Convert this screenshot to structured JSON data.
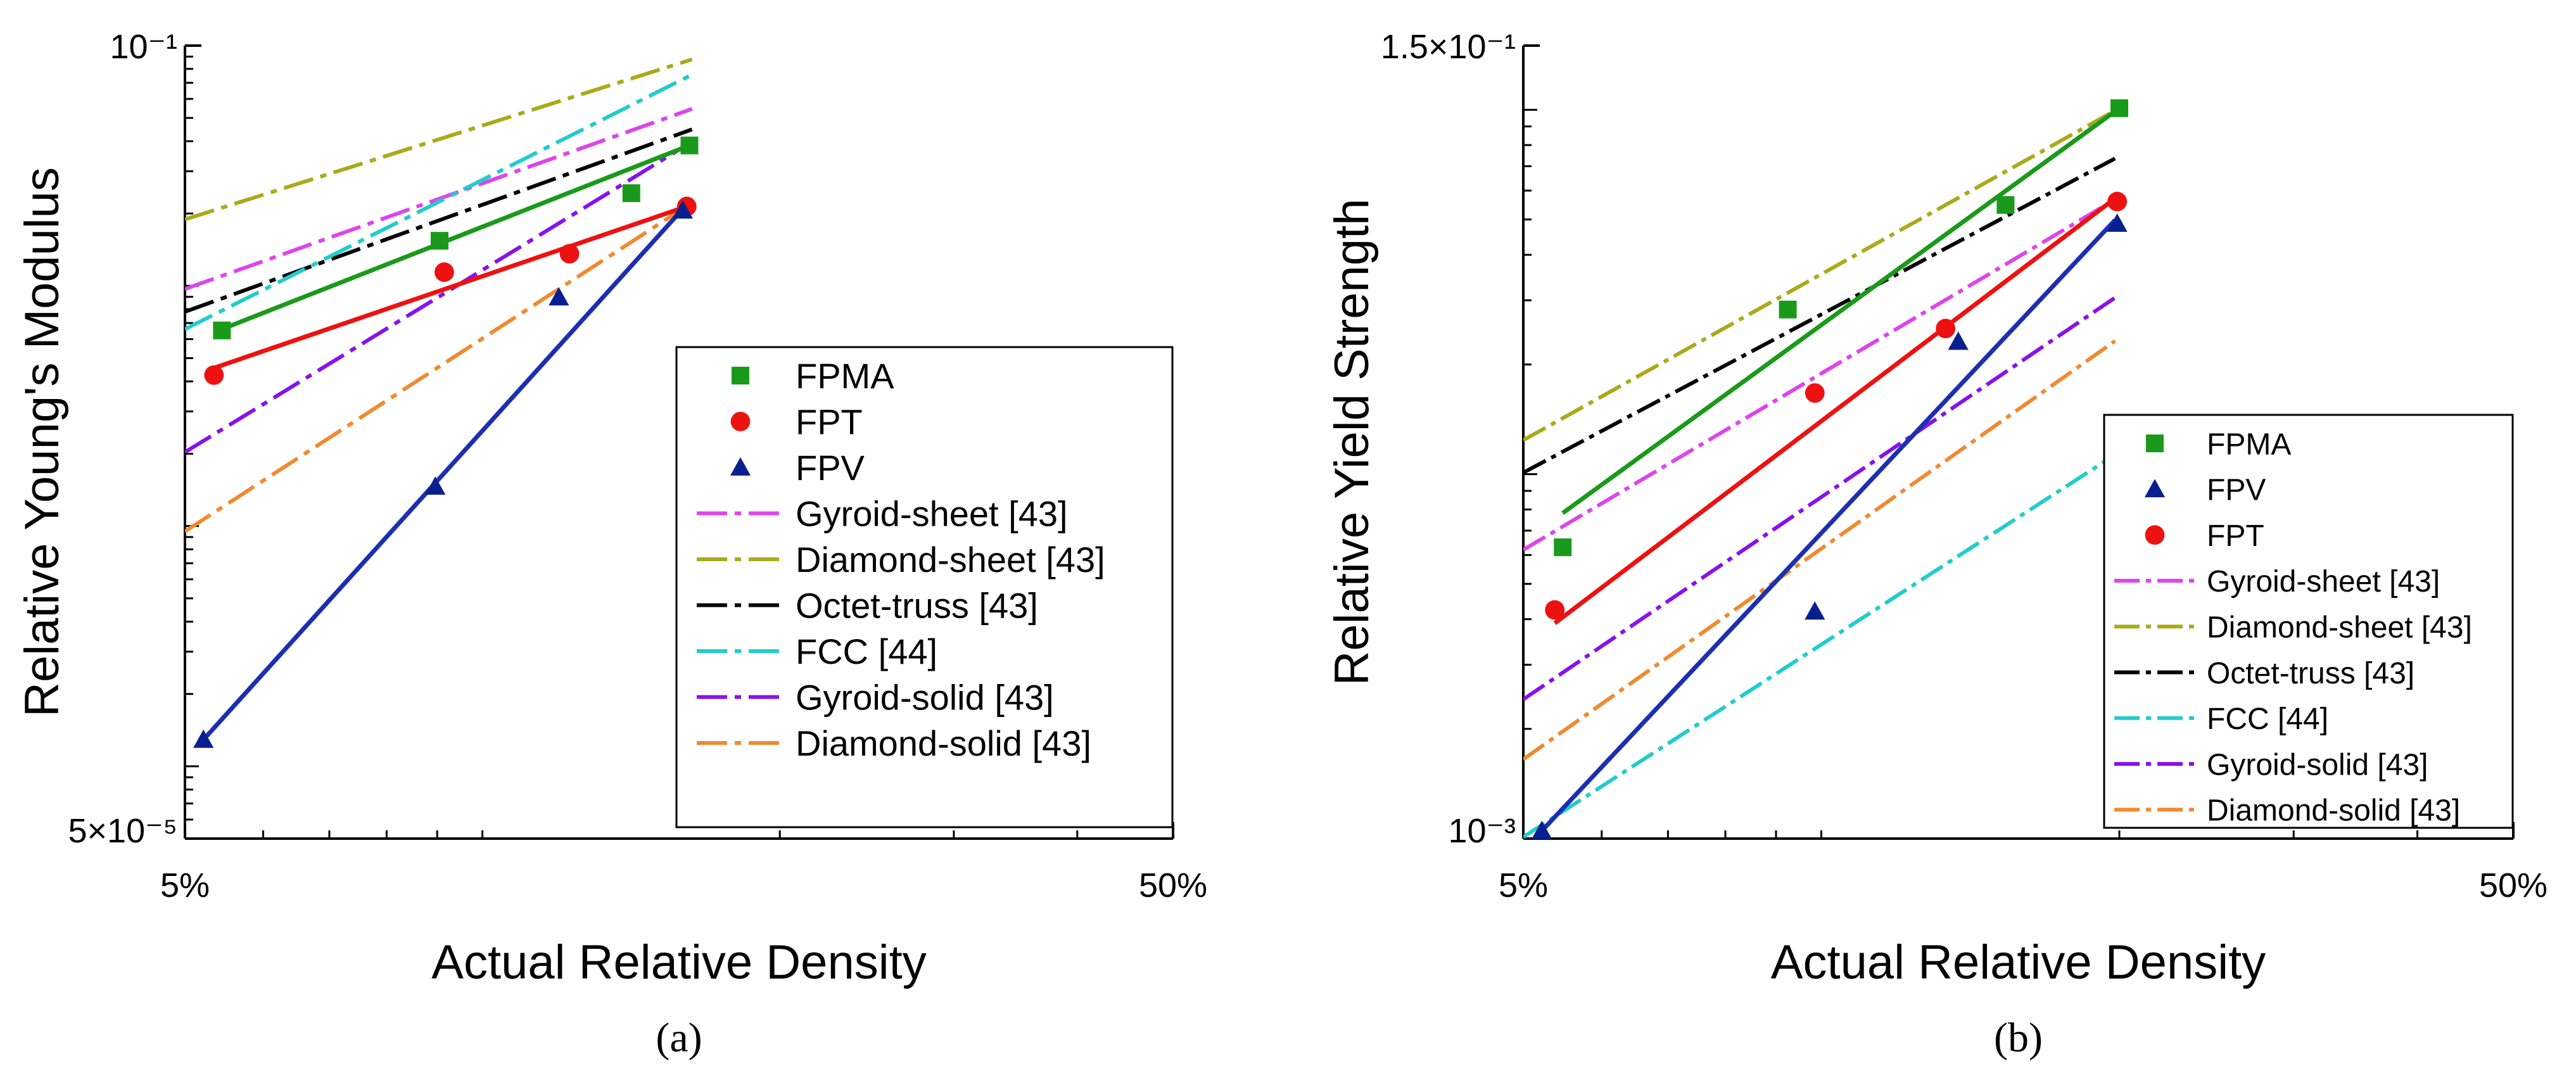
{
  "chart_data": [
    {
      "id": "a",
      "type": "scatter",
      "panel_label": "(a)",
      "xlabel": "Actual Relative Density",
      "ylabel": "Relative Young's Modulus",
      "xscale": "log",
      "yscale": "log",
      "xlim": [
        0.05,
        0.5
      ],
      "ylim": [
        5e-05,
        0.1
      ],
      "x_tick_labels": [
        "5%",
        "50%"
      ],
      "y_tick_labels": [
        "5×10⁻⁵",
        "10⁻¹"
      ],
      "legend_position": "lower-right",
      "series": [
        {
          "name": "FPMA",
          "kind": "points",
          "marker": "square",
          "color": "#1a9a1a",
          "x": [
            0.0545,
            0.0905,
            0.1415,
            0.162
          ],
          "y": [
            0.00652,
            0.0154,
            0.0243,
            0.0384
          ]
        },
        {
          "name": "FPT",
          "kind": "points",
          "marker": "circle",
          "color": "#ee1111",
          "x": [
            0.0535,
            0.0915,
            0.1225,
            0.161
          ],
          "y": [
            0.00425,
            0.0114,
            0.0136,
            0.0214
          ]
        },
        {
          "name": "FPV",
          "kind": "points",
          "marker": "triangle",
          "color": "#0a1f8f",
          "x": [
            0.0522,
            0.0896,
            0.1195,
            0.1595
          ],
          "y": [
            0.000129,
            0.00146,
            0.00896,
            0.0206
          ]
        },
        {
          "name": "FPMA fit",
          "kind": "fit",
          "color": "#1a9a1a",
          "x": [
            0.0545,
            0.162
          ],
          "y": [
            0.0066,
            0.0384
          ]
        },
        {
          "name": "FPT fit",
          "kind": "fit",
          "color": "#ee1111",
          "x": [
            0.0535,
            0.161
          ],
          "y": [
            0.00455,
            0.0214
          ]
        },
        {
          "name": "FPV fit",
          "kind": "fit",
          "color": "#1c2fb0",
          "x": [
            0.0522,
            0.159
          ],
          "y": [
            0.000129,
            0.0206
          ]
        },
        {
          "name": "Gyroid-sheet [43]",
          "kind": "reference",
          "color": "#dd44ee",
          "x": [
            0.05,
            0.163
          ],
          "y": [
            0.0097,
            0.0545
          ]
        },
        {
          "name": "Diamond-sheet [43]",
          "kind": "reference",
          "color": "#aaaa1a",
          "x": [
            0.05,
            0.163
          ],
          "y": [
            0.0189,
            0.0876
          ]
        },
        {
          "name": "Octet-truss [43]",
          "kind": "reference",
          "color": "#000000",
          "x": [
            0.05,
            0.163
          ],
          "y": [
            0.0078,
            0.0448
          ]
        },
        {
          "name": "FCC [44]",
          "kind": "reference",
          "color": "#22cccc",
          "x": [
            0.05,
            0.163
          ],
          "y": [
            0.0066,
            0.0757
          ]
        },
        {
          "name": "Gyroid-solid [43]",
          "kind": "reference",
          "color": "#8811ee",
          "x": [
            0.05,
            0.163
          ],
          "y": [
            0.00203,
            0.0398
          ]
        },
        {
          "name": "Diamond-solid [43]",
          "kind": "reference",
          "color": "#f08a30",
          "x": [
            0.05,
            0.163
          ],
          "y": [
            0.00095,
            0.0222
          ]
        }
      ]
    },
    {
      "id": "b",
      "type": "scatter",
      "panel_label": "(b)",
      "xlabel": "Actual Relative Density",
      "ylabel": "Relative Yield Strength",
      "xscale": "log",
      "yscale": "log",
      "xlim": [
        0.05,
        0.5
      ],
      "ylim": [
        0.001,
        0.15
      ],
      "x_tick_labels": [
        "5%",
        "50%"
      ],
      "y_tick_labels": [
        "10⁻³",
        "1.5×10⁻¹"
      ],
      "legend_position": "lower-right",
      "series": [
        {
          "name": "FPMA",
          "kind": "points",
          "marker": "square",
          "color": "#1a9a1a",
          "x": [
            0.0548,
            0.0925,
            0.1535,
            0.2
          ],
          "y": [
            0.0063,
            0.0283,
            0.0548,
            0.101
          ]
        },
        {
          "name": "FPV",
          "kind": "points",
          "marker": "triangle",
          "color": "#0a1f8f",
          "x": [
            0.0522,
            0.0985,
            0.1375,
            0.199
          ],
          "y": [
            0.00105,
            0.0042,
            0.0231,
            0.0487
          ]
        },
        {
          "name": "FPT",
          "kind": "points",
          "marker": "circle",
          "color": "#ee1111",
          "x": [
            0.0538,
            0.0985,
            0.1335,
            0.199
          ],
          "y": [
            0.00424,
            0.0167,
            0.0251,
            0.056
          ]
        },
        {
          "name": "FPMA fit",
          "kind": "fit",
          "color": "#1a9a1a",
          "x": [
            0.0548,
            0.2
          ],
          "y": [
            0.00782,
            0.101
          ]
        },
        {
          "name": "FPT fit",
          "kind": "fit",
          "color": "#ee1111",
          "x": [
            0.0538,
            0.198
          ],
          "y": [
            0.0039,
            0.0571
          ]
        },
        {
          "name": "FPV fit",
          "kind": "fit",
          "color": "#1c2fb0",
          "x": [
            0.0522,
            0.198
          ],
          "y": [
            0.00105,
            0.0498
          ]
        },
        {
          "name": "Gyroid-sheet [43]",
          "kind": "reference",
          "color": "#dd44ee",
          "x": [
            0.05,
            0.198
          ],
          "y": [
            0.0062,
            0.0567
          ]
        },
        {
          "name": "Diamond-sheet [43]",
          "kind": "reference",
          "color": "#aaaa1a",
          "x": [
            0.05,
            0.2
          ],
          "y": [
            0.0124,
            0.101
          ]
        },
        {
          "name": "Octet-truss [43]",
          "kind": "reference",
          "color": "#000000",
          "x": [
            0.05,
            0.198
          ],
          "y": [
            0.0101,
            0.0735
          ]
        },
        {
          "name": "FCC [44]",
          "kind": "reference",
          "color": "#22cccc",
          "x": [
            0.05,
            0.198
          ],
          "y": [
            0.00101,
            0.0113
          ]
        },
        {
          "name": "Gyroid-solid [43]",
          "kind": "reference",
          "color": "#8811ee",
          "x": [
            0.05,
            0.198
          ],
          "y": [
            0.00241,
            0.0305
          ]
        },
        {
          "name": "Diamond-solid [43]",
          "kind": "reference",
          "color": "#f08a30",
          "x": [
            0.05,
            0.198
          ],
          "y": [
            0.00165,
            0.0232
          ]
        }
      ]
    }
  ]
}
